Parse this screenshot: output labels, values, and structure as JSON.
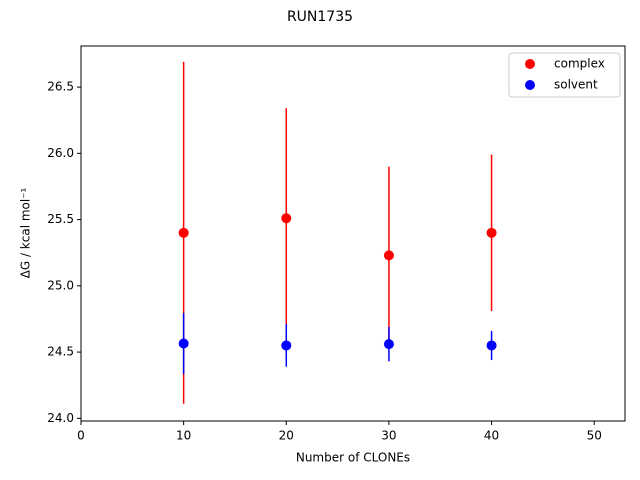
{
  "chart_data": {
    "type": "scatter",
    "title": "RUN1735",
    "x_label": "Number of CLONEs",
    "y_label": "ΔG / kcal mol⁻¹",
    "xlim": [
      0,
      53
    ],
    "xticks": [
      0,
      10,
      20,
      30,
      40,
      50
    ],
    "ylim": [
      23.98,
      26.81
    ],
    "yticks": [
      {
        "value": 24,
        "label": "24.0"
      },
      24.5,
      {
        "value": 25,
        "label": "25.0"
      },
      25.5,
      {
        "value": 26,
        "label": "26.0"
      },
      26.5
    ],
    "legend": "upper right",
    "series": [
      {
        "name": "complex",
        "color": "#ff0000",
        "x": [
          10,
          20,
          30,
          40
        ],
        "values": [
          25.4,
          25.51,
          25.23,
          25.4
        ],
        "errors": [
          1.29,
          0.83,
          0.67,
          0.59
        ]
      },
      {
        "name": "solvent",
        "color": "#0000ff",
        "x": [
          10,
          20,
          30,
          40
        ],
        "values": [
          24.565,
          24.55,
          24.56,
          24.55
        ],
        "errors": [
          0.23,
          0.16,
          0.13,
          0.11
        ]
      }
    ]
  }
}
